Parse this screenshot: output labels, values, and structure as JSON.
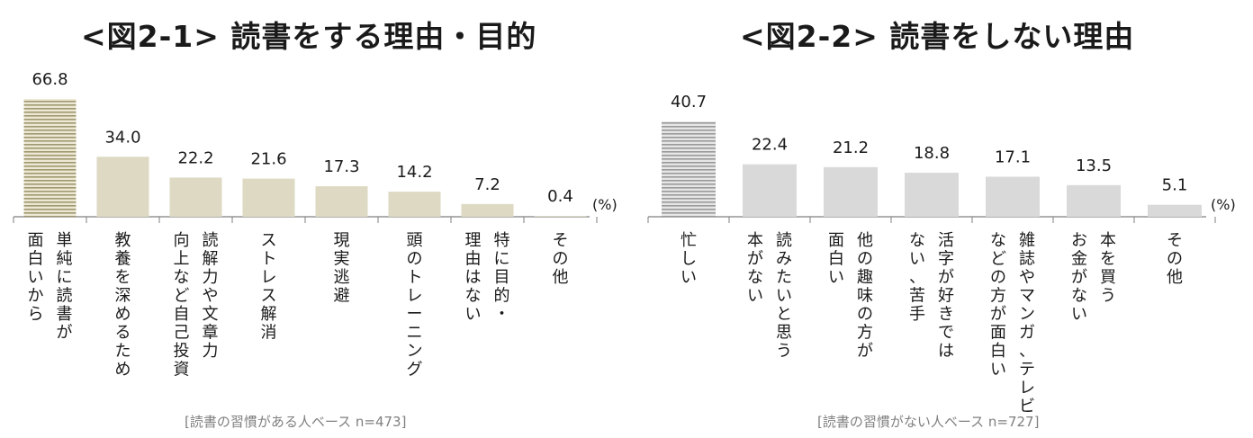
{
  "charts": [
    {
      "title": "<図2-1> 読書をする理由・目的",
      "unit": "(%)",
      "base_note": "[読書の習慣がある人ベース n=473]"
    },
    {
      "title": "<図2-2> 読書をしない理由",
      "unit": "(%)",
      "base_note": "[読書の習慣がない人ベース n=727]"
    }
  ],
  "chart_data": [
    {
      "type": "bar",
      "title": "<図2-1> 読書をする理由・目的",
      "unit": "(%)",
      "categories": [
        [
          "単純に読書が",
          "面白いから"
        ],
        [
          "教養を深めるため"
        ],
        [
          "読解力や文章力",
          "向上など自己投資"
        ],
        [
          "ストレス解消"
        ],
        [
          "現実逃避"
        ],
        [
          "頭のトレーニング"
        ],
        [
          "特に目的・",
          "理由はない"
        ],
        [
          "その他"
        ]
      ],
      "values": [
        66.8,
        34.0,
        22.2,
        21.6,
        17.3,
        14.2,
        7.2,
        0.4
      ],
      "value_labels": [
        "66.8",
        "34.0",
        "22.2",
        "21.6",
        "17.3",
        "14.2",
        "7.2",
        "0.4"
      ],
      "highlight_index": 0,
      "colors": {
        "bar": "#ddd9c3",
        "highlight_stripe": "#a09870",
        "highlight_bg": "#ece8d4",
        "axis": "#7f7f7f"
      },
      "grid": false,
      "ylim": [
        0,
        70
      ]
    },
    {
      "type": "bar",
      "title": "<図2-2> 読書をしない理由",
      "unit": "(%)",
      "categories": [
        [
          "忙しい"
        ],
        [
          "読みたいと思う",
          "本がない"
        ],
        [
          "他の趣味の方が",
          "面白い"
        ],
        [
          "活字が好きでは",
          "ない、苦手"
        ],
        [
          "雑誌やマンガ、テレビ",
          "などの方が面白い"
        ],
        [
          "本を買う",
          "お金がない"
        ],
        [
          "その他"
        ]
      ],
      "values": [
        40.7,
        22.4,
        21.2,
        18.8,
        17.1,
        13.5,
        5.1
      ],
      "value_labels": [
        "40.7",
        "22.4",
        "21.2",
        "18.8",
        "17.1",
        "13.5",
        "5.1"
      ],
      "highlight_index": 0,
      "colors": {
        "bar": "#d9d9d9",
        "highlight_stripe": "#9a9a9a",
        "highlight_bg": "#e6e6e6",
        "axis": "#7f7f7f"
      },
      "grid": false,
      "ylim": [
        0,
        42.5
      ]
    }
  ]
}
